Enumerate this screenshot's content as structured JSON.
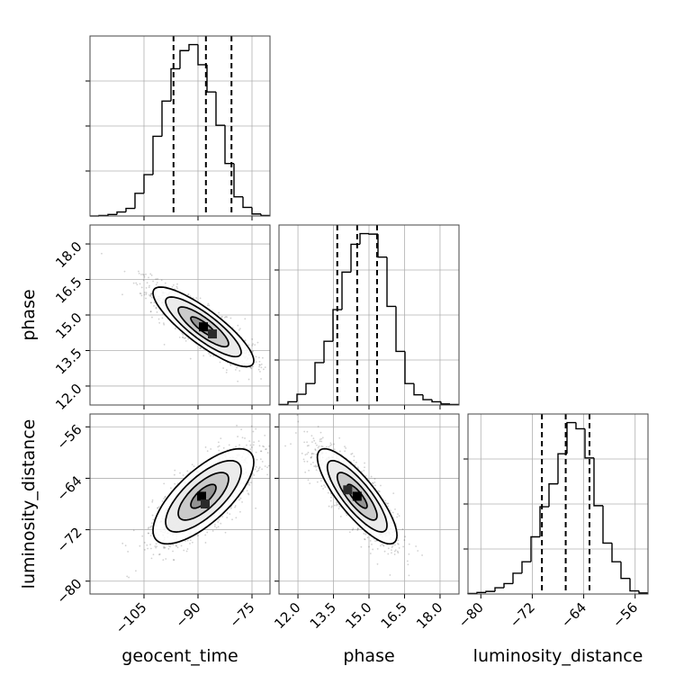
{
  "chart_data": {
    "type": "corner",
    "parameters": [
      "geocent_time",
      "phase",
      "luminosity_distance"
    ],
    "axis_labels": {
      "geocent_time": "geocent_time",
      "phase": "phase",
      "luminosity_distance": "luminosity_distance"
    },
    "ranges": {
      "geocent_time": [
        -120,
        -70
      ],
      "phase": [
        11.2,
        18.8
      ],
      "luminosity_distance": [
        -82,
        -54
      ]
    },
    "ticks": {
      "geocent_time": [
        -105,
        -90,
        -75
      ],
      "phase": [
        12.0,
        13.5,
        15.0,
        16.5,
        18.0
      ],
      "luminosity_distance": [
        -80,
        -72,
        -64,
        -56
      ]
    },
    "tick_labels": {
      "geocent_time": [
        "−105",
        "−90",
        "−75"
      ],
      "phase": [
        "12.0",
        "13.5",
        "15.0",
        "16.5",
        "18.0"
      ],
      "luminosity_distance": [
        "−80",
        "−72",
        "−64",
        "−56"
      ]
    },
    "grid": true,
    "marginals": {
      "geocent_time": {
        "bin_edges": [
          -120,
          -117.5,
          -115,
          -112.5,
          -110,
          -107.5,
          -105,
          -102.5,
          -100,
          -97.5,
          -95,
          -92.5,
          -90,
          -87.5,
          -85,
          -82.5,
          -80,
          -77.5,
          -75,
          -72.5,
          -70
        ],
        "counts": [
          0,
          1,
          3,
          8,
          15,
          45,
          82,
          158,
          228,
          292,
          328,
          340,
          300,
          246,
          180,
          104,
          38,
          17,
          4,
          1
        ],
        "quantiles": [
          -96.8,
          -87.8,
          -80.7
        ]
      },
      "phase": {
        "bin_edges": [
          11.2,
          11.58,
          11.96,
          12.34,
          12.72,
          13.1,
          13.48,
          13.86,
          14.24,
          14.62,
          15.0,
          15.38,
          15.76,
          16.14,
          16.52,
          16.9,
          17.28,
          17.66,
          18.04,
          18.42,
          18.8
        ],
        "counts": [
          1,
          6,
          20,
          40,
          79,
          119,
          178,
          248,
          300,
          320,
          319,
          276,
          184,
          100,
          40,
          19,
          10,
          6,
          2,
          1
        ],
        "quantiles": [
          13.66,
          14.5,
          15.34
        ]
      },
      "luminosity_distance": {
        "bin_edges": [
          -82,
          -80.6,
          -79.2,
          -77.8,
          -76.4,
          -75,
          -73.6,
          -72.2,
          -70.8,
          -69.4,
          -68,
          -66.6,
          -65.2,
          -63.8,
          -62.4,
          -61,
          -59.6,
          -58.2,
          -56.8,
          -55.4,
          -54
        ],
        "counts": [
          1,
          3,
          5,
          12,
          20,
          40,
          62,
          110,
          168,
          212,
          270,
          330,
          318,
          262,
          170,
          98,
          62,
          30,
          6,
          2
        ],
        "quantiles": [
          -70.5,
          -66.8,
          -63.1
        ]
      }
    },
    "joint": [
      {
        "x": "geocent_time",
        "y": "phase",
        "mean": [
          -88.5,
          14.5
        ],
        "sigma": [
          7.0,
          0.84
        ],
        "correlation": -0.85,
        "contour_levels": [
          0.5,
          1.0,
          1.5,
          2.0
        ],
        "peak_cells": [
          [
            -88.5,
            14.5
          ],
          [
            -86.0,
            14.2
          ]
        ]
      },
      {
        "x": "geocent_time",
        "y": "luminosity_distance",
        "mean": [
          -88.5,
          -66.8
        ],
        "sigma": [
          7.0,
          3.7
        ],
        "correlation": 0.72,
        "contour_levels": [
          0.5,
          1.0,
          1.5,
          2.0
        ],
        "peak_cells": [
          [
            -89.0,
            -66.8
          ],
          [
            -88.0,
            -68.0
          ]
        ]
      },
      {
        "x": "phase",
        "y": "luminosity_distance",
        "mean": [
          14.5,
          -66.8
        ],
        "sigma": [
          0.84,
          3.7
        ],
        "correlation": -0.82,
        "contour_levels": [
          0.5,
          1.0,
          1.5,
          2.0
        ],
        "peak_cells": [
          [
            14.5,
            -66.8
          ],
          [
            14.1,
            -65.8
          ]
        ]
      }
    ]
  }
}
